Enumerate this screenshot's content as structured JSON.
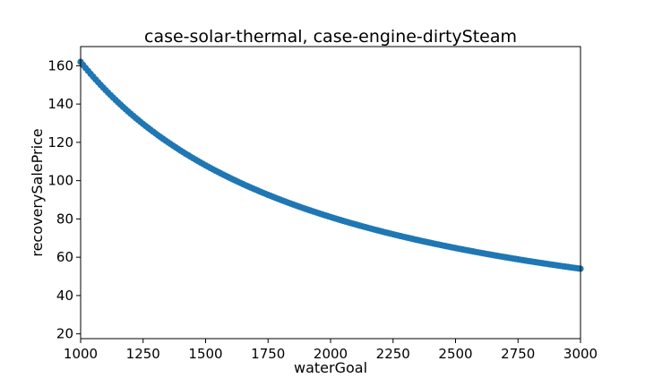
{
  "chart_data": {
    "type": "scatter",
    "title": "case-solar-thermal, case-engine-dirtySteam",
    "xlabel": "waterGoal",
    "ylabel": "recoverySalePrice",
    "xlim": [
      1000,
      3000
    ],
    "ylim": [
      17.5,
      170
    ],
    "xticks": [
      1000,
      1250,
      1500,
      1750,
      2000,
      2250,
      2500,
      2750,
      3000
    ],
    "yticks": [
      20,
      40,
      60,
      80,
      100,
      120,
      140,
      160
    ],
    "grid": false,
    "marker_color": "#1f77b4",
    "series": [
      {
        "relation": "y = 162000 / x",
        "x_start": 1000,
        "x_end": 3000,
        "x_step": 10,
        "x": [],
        "y": []
      }
    ]
  }
}
